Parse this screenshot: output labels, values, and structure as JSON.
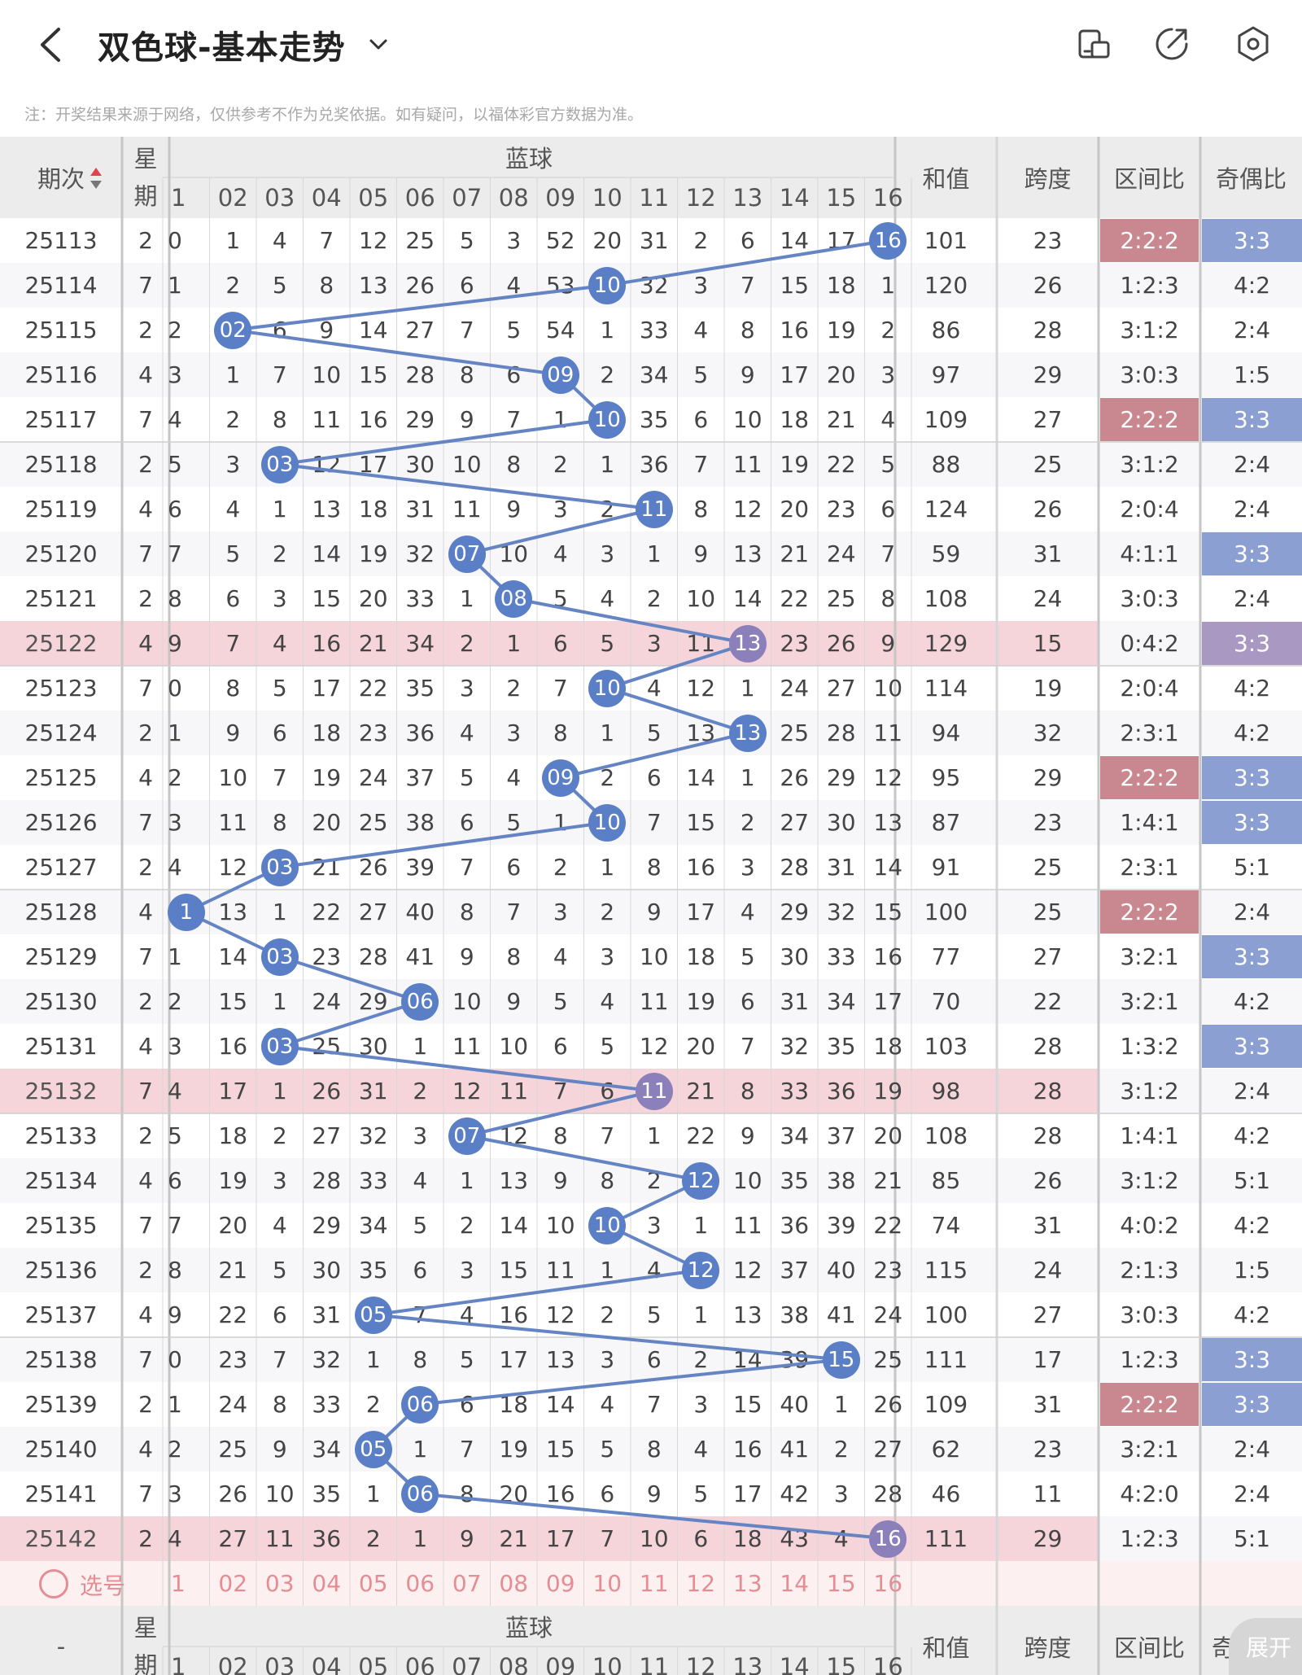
{
  "header": {
    "title": "双色球-基本走势",
    "notice": "注：开奖结果来源于网络，仅供参考不作为兑奖依据。如有疑问，以福体彩官方数据为准。",
    "icons": [
      "back-icon",
      "chevron-down-icon",
      "phone-rotate-icon",
      "share-icon",
      "settings-icon"
    ]
  },
  "table": {
    "col_period": "期次",
    "col_week": "星期",
    "group_blue": "蓝球",
    "col_sum": "和值",
    "col_span": "跨度",
    "col_zone": "区间比",
    "col_oddeven": "奇偶比",
    "blue_labels": [
      "1",
      "02",
      "03",
      "04",
      "05",
      "06",
      "07",
      "08",
      "09",
      "10",
      "11",
      "12",
      "13",
      "14",
      "15",
      "16"
    ],
    "rows": [
      {
        "period": "25113",
        "week": "2",
        "cells": [
          "0",
          "1",
          "4",
          "7",
          "12",
          "25",
          "5",
          "3",
          "52",
          "20",
          "31",
          "2",
          "6",
          "14",
          "17",
          "16"
        ],
        "blue": 16,
        "sum": "101",
        "span": "23",
        "zone": "2:2:2",
        "oe": "3:3",
        "zoneHL": "red",
        "oeHL": "blue",
        "rowHL": false
      },
      {
        "period": "25114",
        "week": "7",
        "cells": [
          "1",
          "2",
          "5",
          "8",
          "13",
          "26",
          "6",
          "4",
          "53",
          "10",
          "32",
          "3",
          "7",
          "15",
          "18",
          "1"
        ],
        "blue": 10,
        "sum": "120",
        "span": "26",
        "zone": "1:2:3",
        "oe": "4:2",
        "zoneHL": "",
        "oeHL": "",
        "rowHL": false
      },
      {
        "period": "25115",
        "week": "2",
        "cells": [
          "2",
          "02",
          "6",
          "9",
          "14",
          "27",
          "7",
          "5",
          "54",
          "1",
          "33",
          "4",
          "8",
          "16",
          "19",
          "2"
        ],
        "blue": 2,
        "sum": "86",
        "span": "28",
        "zone": "3:1:2",
        "oe": "2:4",
        "zoneHL": "",
        "oeHL": "",
        "rowHL": false
      },
      {
        "period": "25116",
        "week": "4",
        "cells": [
          "3",
          "1",
          "7",
          "10",
          "15",
          "28",
          "8",
          "6",
          "09",
          "2",
          "34",
          "5",
          "9",
          "17",
          "20",
          "3"
        ],
        "blue": 9,
        "sum": "97",
        "span": "29",
        "zone": "3:0:3",
        "oe": "1:5",
        "zoneHL": "",
        "oeHL": "",
        "rowHL": false
      },
      {
        "period": "25117",
        "week": "7",
        "cells": [
          "4",
          "2",
          "8",
          "11",
          "16",
          "29",
          "9",
          "7",
          "1",
          "10",
          "35",
          "6",
          "10",
          "18",
          "21",
          "4"
        ],
        "blue": 10,
        "sum": "109",
        "span": "27",
        "zone": "2:2:2",
        "oe": "3:3",
        "zoneHL": "red",
        "oeHL": "blue",
        "rowHL": false
      },
      {
        "period": "25118",
        "week": "2",
        "cells": [
          "5",
          "3",
          "03",
          "12",
          "17",
          "30",
          "10",
          "8",
          "2",
          "1",
          "36",
          "7",
          "11",
          "19",
          "22",
          "5"
        ],
        "blue": 3,
        "sum": "88",
        "span": "25",
        "zone": "3:1:2",
        "oe": "2:4",
        "zoneHL": "",
        "oeHL": "",
        "rowHL": false
      },
      {
        "period": "25119",
        "week": "4",
        "cells": [
          "6",
          "4",
          "1",
          "13",
          "18",
          "31",
          "11",
          "9",
          "3",
          "2",
          "11",
          "8",
          "12",
          "20",
          "23",
          "6"
        ],
        "blue": 11,
        "sum": "124",
        "span": "26",
        "zone": "2:0:4",
        "oe": "2:4",
        "zoneHL": "",
        "oeHL": "",
        "rowHL": false
      },
      {
        "period": "25120",
        "week": "7",
        "cells": [
          "7",
          "5",
          "2",
          "14",
          "19",
          "32",
          "07",
          "10",
          "4",
          "3",
          "1",
          "9",
          "13",
          "21",
          "24",
          "7"
        ],
        "blue": 7,
        "sum": "59",
        "span": "31",
        "zone": "4:1:1",
        "oe": "3:3",
        "zoneHL": "",
        "oeHL": "blue",
        "rowHL": false
      },
      {
        "period": "25121",
        "week": "2",
        "cells": [
          "8",
          "6",
          "3",
          "15",
          "20",
          "33",
          "1",
          "08",
          "5",
          "4",
          "2",
          "10",
          "14",
          "22",
          "25",
          "8"
        ],
        "blue": 8,
        "sum": "108",
        "span": "24",
        "zone": "3:0:3",
        "oe": "2:4",
        "zoneHL": "",
        "oeHL": "",
        "rowHL": false
      },
      {
        "period": "25122",
        "week": "4",
        "cells": [
          "9",
          "7",
          "4",
          "16",
          "21",
          "34",
          "2",
          "1",
          "6",
          "5",
          "3",
          "11",
          "13",
          "23",
          "26",
          "9"
        ],
        "blue": 13,
        "sum": "129",
        "span": "15",
        "zone": "0:4:2",
        "oe": "3:3",
        "zoneHL": "",
        "oeHL": "purple",
        "rowHL": true
      },
      {
        "period": "25123",
        "week": "7",
        "cells": [
          "0",
          "8",
          "5",
          "17",
          "22",
          "35",
          "3",
          "2",
          "7",
          "10",
          "4",
          "12",
          "1",
          "24",
          "27",
          "10"
        ],
        "blue": 10,
        "sum": "114",
        "span": "19",
        "zone": "2:0:4",
        "oe": "4:2",
        "zoneHL": "",
        "oeHL": "",
        "rowHL": false
      },
      {
        "period": "25124",
        "week": "2",
        "cells": [
          "1",
          "9",
          "6",
          "18",
          "23",
          "36",
          "4",
          "3",
          "8",
          "1",
          "5",
          "13",
          "13",
          "25",
          "28",
          "11"
        ],
        "blue": 13,
        "sum": "94",
        "span": "32",
        "zone": "2:3:1",
        "oe": "4:2",
        "zoneHL": "",
        "oeHL": "",
        "rowHL": false
      },
      {
        "period": "25125",
        "week": "4",
        "cells": [
          "2",
          "10",
          "7",
          "19",
          "24",
          "37",
          "5",
          "4",
          "09",
          "2",
          "6",
          "14",
          "1",
          "26",
          "29",
          "12"
        ],
        "blue": 9,
        "sum": "95",
        "span": "29",
        "zone": "2:2:2",
        "oe": "3:3",
        "zoneHL": "red",
        "oeHL": "blue",
        "rowHL": false
      },
      {
        "period": "25126",
        "week": "7",
        "cells": [
          "3",
          "11",
          "8",
          "20",
          "25",
          "38",
          "6",
          "5",
          "1",
          "10",
          "7",
          "15",
          "2",
          "27",
          "30",
          "13"
        ],
        "blue": 10,
        "sum": "87",
        "span": "23",
        "zone": "1:4:1",
        "oe": "3:3",
        "zoneHL": "",
        "oeHL": "blue",
        "rowHL": false
      },
      {
        "period": "25127",
        "week": "2",
        "cells": [
          "4",
          "12",
          "03",
          "21",
          "26",
          "39",
          "7",
          "6",
          "2",
          "1",
          "8",
          "16",
          "3",
          "28",
          "31",
          "14"
        ],
        "blue": 3,
        "sum": "91",
        "span": "25",
        "zone": "2:3:1",
        "oe": "5:1",
        "zoneHL": "",
        "oeHL": "",
        "rowHL": false
      },
      {
        "period": "25128",
        "week": "4",
        "cells": [
          "1",
          "13",
          "1",
          "22",
          "27",
          "40",
          "8",
          "7",
          "3",
          "2",
          "9",
          "17",
          "4",
          "29",
          "32",
          "15"
        ],
        "blue": 1,
        "sum": "100",
        "span": "25",
        "zone": "2:2:2",
        "oe": "2:4",
        "zoneHL": "red",
        "oeHL": "",
        "rowHL": false
      },
      {
        "period": "25129",
        "week": "7",
        "cells": [
          "1",
          "14",
          "03",
          "23",
          "28",
          "41",
          "9",
          "8",
          "4",
          "3",
          "10",
          "18",
          "5",
          "30",
          "33",
          "16"
        ],
        "blue": 3,
        "sum": "77",
        "span": "27",
        "zone": "3:2:1",
        "oe": "3:3",
        "zoneHL": "",
        "oeHL": "blue",
        "rowHL": false
      },
      {
        "period": "25130",
        "week": "2",
        "cells": [
          "2",
          "15",
          "1",
          "24",
          "29",
          "06",
          "10",
          "9",
          "5",
          "4",
          "11",
          "19",
          "6",
          "31",
          "34",
          "17"
        ],
        "blue": 6,
        "sum": "70",
        "span": "22",
        "zone": "3:2:1",
        "oe": "4:2",
        "zoneHL": "",
        "oeHL": "",
        "rowHL": false
      },
      {
        "period": "25131",
        "week": "4",
        "cells": [
          "3",
          "16",
          "03",
          "25",
          "30",
          "1",
          "11",
          "10",
          "6",
          "5",
          "12",
          "20",
          "7",
          "32",
          "35",
          "18"
        ],
        "blue": 3,
        "sum": "103",
        "span": "28",
        "zone": "1:3:2",
        "oe": "3:3",
        "zoneHL": "",
        "oeHL": "blue",
        "rowHL": false
      },
      {
        "period": "25132",
        "week": "7",
        "cells": [
          "4",
          "17",
          "1",
          "26",
          "31",
          "2",
          "12",
          "11",
          "7",
          "6",
          "11",
          "21",
          "8",
          "33",
          "36",
          "19"
        ],
        "blue": 11,
        "sum": "98",
        "span": "28",
        "zone": "3:1:2",
        "oe": "2:4",
        "zoneHL": "",
        "oeHL": "",
        "rowHL": true
      },
      {
        "period": "25133",
        "week": "2",
        "cells": [
          "5",
          "18",
          "2",
          "27",
          "32",
          "3",
          "07",
          "12",
          "8",
          "7",
          "1",
          "22",
          "9",
          "34",
          "37",
          "20"
        ],
        "blue": 7,
        "sum": "108",
        "span": "28",
        "zone": "1:4:1",
        "oe": "4:2",
        "zoneHL": "",
        "oeHL": "",
        "rowHL": false
      },
      {
        "period": "25134",
        "week": "4",
        "cells": [
          "6",
          "19",
          "3",
          "28",
          "33",
          "4",
          "1",
          "13",
          "9",
          "8",
          "2",
          "12",
          "10",
          "35",
          "38",
          "21"
        ],
        "blue": 12,
        "sum": "85",
        "span": "26",
        "zone": "3:1:2",
        "oe": "5:1",
        "zoneHL": "",
        "oeHL": "",
        "rowHL": false
      },
      {
        "period": "25135",
        "week": "7",
        "cells": [
          "7",
          "20",
          "4",
          "29",
          "34",
          "5",
          "2",
          "14",
          "10",
          "10",
          "3",
          "1",
          "11",
          "36",
          "39",
          "22"
        ],
        "blue": 10,
        "sum": "74",
        "span": "31",
        "zone": "4:0:2",
        "oe": "4:2",
        "zoneHL": "",
        "oeHL": "",
        "rowHL": false
      },
      {
        "period": "25136",
        "week": "2",
        "cells": [
          "8",
          "21",
          "5",
          "30",
          "35",
          "6",
          "3",
          "15",
          "11",
          "1",
          "4",
          "12",
          "12",
          "37",
          "40",
          "23"
        ],
        "blue": 12,
        "sum": "115",
        "span": "24",
        "zone": "2:1:3",
        "oe": "1:5",
        "zoneHL": "",
        "oeHL": "",
        "rowHL": false
      },
      {
        "period": "25137",
        "week": "4",
        "cells": [
          "9",
          "22",
          "6",
          "31",
          "05",
          "7",
          "4",
          "16",
          "12",
          "2",
          "5",
          "1",
          "13",
          "38",
          "41",
          "24"
        ],
        "blue": 5,
        "sum": "100",
        "span": "27",
        "zone": "3:0:3",
        "oe": "4:2",
        "zoneHL": "",
        "oeHL": "",
        "rowHL": false
      },
      {
        "period": "25138",
        "week": "7",
        "cells": [
          "0",
          "23",
          "7",
          "32",
          "1",
          "8",
          "5",
          "17",
          "13",
          "3",
          "6",
          "2",
          "14",
          "39",
          "15",
          "25"
        ],
        "blue": 15,
        "sum": "111",
        "span": "17",
        "zone": "1:2:3",
        "oe": "3:3",
        "zoneHL": "",
        "oeHL": "blue",
        "rowHL": false
      },
      {
        "period": "25139",
        "week": "2",
        "cells": [
          "1",
          "24",
          "8",
          "33",
          "2",
          "06",
          "6",
          "18",
          "14",
          "4",
          "7",
          "3",
          "15",
          "40",
          "1",
          "26"
        ],
        "blue": 6,
        "sum": "109",
        "span": "31",
        "zone": "2:2:2",
        "oe": "3:3",
        "zoneHL": "red",
        "oeHL": "blue",
        "rowHL": false
      },
      {
        "period": "25140",
        "week": "4",
        "cells": [
          "2",
          "25",
          "9",
          "34",
          "05",
          "1",
          "7",
          "19",
          "15",
          "5",
          "8",
          "4",
          "16",
          "41",
          "2",
          "27"
        ],
        "blue": 5,
        "sum": "62",
        "span": "23",
        "zone": "3:2:1",
        "oe": "2:4",
        "zoneHL": "",
        "oeHL": "",
        "rowHL": false
      },
      {
        "period": "25141",
        "week": "7",
        "cells": [
          "3",
          "26",
          "10",
          "35",
          "1",
          "06",
          "8",
          "20",
          "16",
          "6",
          "9",
          "5",
          "17",
          "42",
          "3",
          "28"
        ],
        "blue": 6,
        "sum": "46",
        "span": "11",
        "zone": "4:2:0",
        "oe": "2:4",
        "zoneHL": "",
        "oeHL": "",
        "rowHL": false
      },
      {
        "period": "25142",
        "week": "2",
        "cells": [
          "4",
          "27",
          "11",
          "36",
          "2",
          "1",
          "9",
          "21",
          "17",
          "7",
          "10",
          "6",
          "18",
          "43",
          "4",
          "16"
        ],
        "blue": 16,
        "sum": "111",
        "span": "29",
        "zone": "1:2:3",
        "oe": "5:1",
        "zoneHL": "",
        "oeHL": "",
        "rowHL": true
      }
    ],
    "pick_label": "选号",
    "footer_period": "-",
    "expand_label": "展开"
  },
  "colors": {
    "ball": "#5a7fc6",
    "ball_purple": "#8c80bb",
    "line": "#6584c4",
    "row_highlight": "#f5d5da",
    "zone_highlight": "#c9878f",
    "oe_highlight": "#8b9fd3",
    "pick_text": "#e58d95"
  }
}
